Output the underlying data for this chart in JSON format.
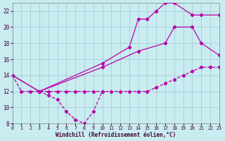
{
  "xlabel": "Windchill (Refroidissement éolien,°C)",
  "bg_color": "#c8ecf0",
  "grid_color": "#a8ccd4",
  "line_color": "#bb00aa",
  "xlim": [
    0,
    23
  ],
  "ylim": [
    8,
    23
  ],
  "xticks": [
    0,
    1,
    2,
    3,
    4,
    5,
    6,
    7,
    8,
    9,
    10,
    11,
    12,
    13,
    14,
    15,
    16,
    17,
    18,
    19,
    20,
    21,
    22,
    23
  ],
  "yticks": [
    8,
    10,
    12,
    14,
    16,
    18,
    20,
    22
  ],
  "series": [
    {
      "x": [
        0,
        1,
        2,
        3,
        4,
        5,
        6,
        7,
        8,
        9,
        10,
        11,
        12,
        13,
        14,
        15,
        16,
        17,
        18,
        19,
        20,
        21,
        22,
        23
      ],
      "y": [
        14,
        12,
        12,
        12,
        12,
        12,
        12,
        12,
        12,
        12,
        12,
        12,
        12,
        12,
        12,
        12,
        12.5,
        13,
        13.5,
        14,
        14.5,
        15,
        15,
        15
      ],
      "linestyle": "--"
    },
    {
      "comment": "line going from 0->3->10->14->17->18->20->21->23",
      "x": [
        0,
        3,
        10,
        14,
        17,
        18,
        20,
        21,
        23
      ],
      "y": [
        14,
        12,
        15,
        17,
        18,
        20,
        20,
        18,
        16.5
      ],
      "linestyle": "-"
    },
    {
      "x": [
        0,
        3,
        10,
        13,
        14,
        15,
        16,
        17,
        18,
        20,
        21,
        23
      ],
      "y": [
        14,
        12,
        15.5,
        17.5,
        21,
        21,
        22,
        23,
        23,
        21.5,
        21.5,
        21.5
      ],
      "linestyle": "-"
    },
    {
      "x": [
        3,
        4,
        5,
        6,
        7,
        8,
        9,
        10
      ],
      "y": [
        12,
        11.5,
        11,
        9.5,
        8.5,
        8,
        9.5,
        12
      ],
      "linestyle": "--"
    }
  ]
}
